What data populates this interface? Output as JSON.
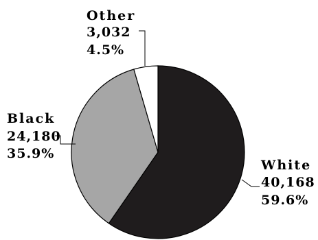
{
  "chart_data": {
    "type": "pie",
    "start_angle_deg": 0,
    "direction": "clockwise",
    "slices": [
      {
        "label": "White",
        "value": 40168,
        "value_text": "40,168",
        "percent_text": "59.6%",
        "color": "#1f1c1d"
      },
      {
        "label": "Black",
        "value": 24180,
        "value_text": "24,180",
        "percent_text": "35.9%",
        "color": "#a6a6a6"
      },
      {
        "label": "Other",
        "value": 3032,
        "value_text": "3,032",
        "percent_text": "4.5%",
        "color": "#ffffff"
      }
    ],
    "outline_color": "#000000"
  }
}
